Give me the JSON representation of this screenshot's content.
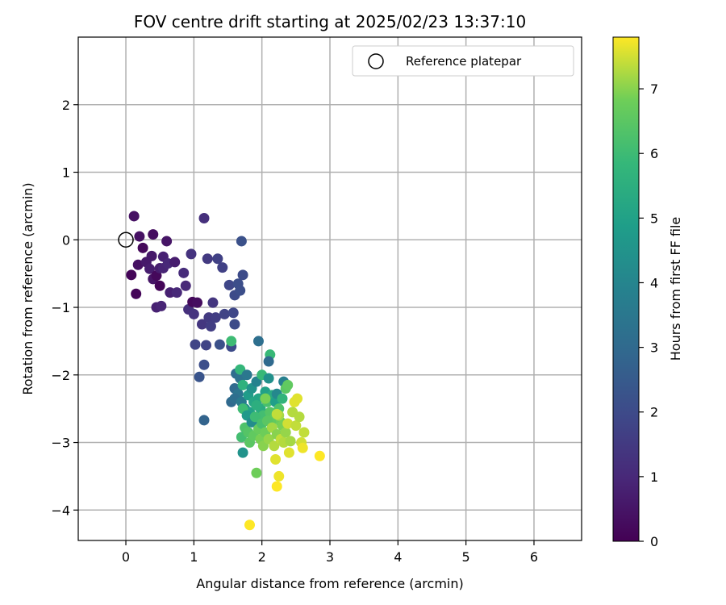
{
  "chart_data": {
    "type": "scatter",
    "title": "FOV centre drift starting at 2025/02/23 13:37:10",
    "xlabel": "Angular distance from reference (arcmin)",
    "ylabel": "Rotation from reference (arcmin)",
    "xlim": [
      -0.7,
      6.7
    ],
    "ylim": [
      -4.45,
      3.0
    ],
    "xticks": [
      0,
      1,
      2,
      3,
      4,
      5,
      6
    ],
    "yticks": [
      2,
      1,
      0,
      -1,
      -2,
      -3,
      -4
    ],
    "xtick_labels": [
      "0",
      "1",
      "2",
      "3",
      "4",
      "5",
      "6"
    ],
    "ytick_labels": [
      "2",
      "1",
      "0",
      "−1",
      "−2",
      "−3",
      "−4"
    ],
    "grid": true,
    "legend": {
      "placement": "top-right",
      "label": "Reference platepar"
    },
    "reference_point": {
      "x": 0,
      "y": 0
    },
    "colorbar": {
      "label": "Hours from first FF file",
      "colormap": "viridis",
      "range": [
        0,
        7.8
      ],
      "ticks": [
        0,
        1,
        2,
        3,
        4,
        5,
        6,
        7
      ],
      "tick_labels": [
        "0",
        "1",
        "2",
        "3",
        "4",
        "5",
        "6",
        "7"
      ]
    },
    "points": [
      [
        0.08,
        -0.52,
        0.1
      ],
      [
        0.12,
        0.35,
        0.4
      ],
      [
        0.15,
        -0.8,
        0.1
      ],
      [
        0.18,
        -0.37,
        0.4
      ],
      [
        0.2,
        0.05,
        0.4
      ],
      [
        0.25,
        -0.12,
        0.2
      ],
      [
        0.3,
        -0.33,
        0.6
      ],
      [
        0.35,
        -0.43,
        0.7
      ],
      [
        0.38,
        -0.24,
        0.6
      ],
      [
        0.4,
        0.08,
        0.3
      ],
      [
        0.4,
        -0.58,
        0.5
      ],
      [
        0.45,
        -0.53,
        0.2
      ],
      [
        0.45,
        -1.0,
        0.8
      ],
      [
        0.5,
        -0.68,
        0.1
      ],
      [
        0.5,
        -0.42,
        0.7
      ],
      [
        0.52,
        -0.98,
        0.9
      ],
      [
        0.55,
        -0.25,
        0.8
      ],
      [
        0.55,
        -0.42,
        0.9
      ],
      [
        0.6,
        -0.02,
        0.5
      ],
      [
        0.62,
        -0.35,
        1.0
      ],
      [
        0.65,
        -0.78,
        0.8
      ],
      [
        0.72,
        -0.33,
        0.7
      ],
      [
        0.75,
        -0.78,
        1.0
      ],
      [
        0.85,
        -0.49,
        1.1
      ],
      [
        0.88,
        -0.68,
        1.0
      ],
      [
        0.92,
        -1.03,
        1.2
      ],
      [
        0.96,
        -0.21,
        1.3
      ],
      [
        0.98,
        -0.92,
        0.2
      ],
      [
        1.0,
        -1.1,
        1.3
      ],
      [
        1.02,
        -1.55,
        1.8
      ],
      [
        1.05,
        -0.93,
        0.3
      ],
      [
        1.08,
        -2.03,
        2.3
      ],
      [
        1.12,
        -1.25,
        1.4
      ],
      [
        1.15,
        -1.85,
        2.1
      ],
      [
        1.15,
        0.32,
        1.2
      ],
      [
        1.18,
        -1.56,
        1.8
      ],
      [
        1.15,
        -2.67,
        2.8
      ],
      [
        1.2,
        -0.28,
        1.5
      ],
      [
        1.22,
        -1.15,
        1.5
      ],
      [
        1.25,
        -1.28,
        1.6
      ],
      [
        1.28,
        -0.93,
        1.4
      ],
      [
        1.32,
        -1.15,
        1.6
      ],
      [
        1.35,
        -0.28,
        1.7
      ],
      [
        1.38,
        -1.55,
        2.2
      ],
      [
        1.42,
        -0.41,
        1.7
      ],
      [
        1.45,
        -1.1,
        1.8
      ],
      [
        1.52,
        -0.67,
        1.9
      ],
      [
        1.55,
        -1.58,
        2.0
      ],
      [
        1.58,
        -1.08,
        1.9
      ],
      [
        1.6,
        -1.25,
        2.0
      ],
      [
        1.6,
        -0.82,
        2.0
      ],
      [
        1.65,
        -0.65,
        2.1
      ],
      [
        1.68,
        -0.75,
        2.1
      ],
      [
        1.7,
        -0.02,
        2.2
      ],
      [
        1.72,
        -0.52,
        2.0
      ],
      [
        1.55,
        -1.5,
        6.0
      ],
      [
        1.6,
        -2.2,
        3.0
      ],
      [
        1.62,
        -1.98,
        3.1
      ],
      [
        1.65,
        -2.28,
        3.4
      ],
      [
        1.68,
        -2.05,
        3.3
      ],
      [
        1.55,
        -2.4,
        3.0
      ],
      [
        1.6,
        -2.35,
        3.2
      ],
      [
        1.68,
        -1.92,
        5.8
      ],
      [
        1.7,
        -2.4,
        3.6
      ],
      [
        1.72,
        -2.15,
        5.6
      ],
      [
        1.75,
        -2.5,
        4.2
      ],
      [
        1.78,
        -2.0,
        3.5
      ],
      [
        1.8,
        -2.3,
        4.8
      ],
      [
        1.82,
        -2.55,
        5.0
      ],
      [
        1.85,
        -2.2,
        4.5
      ],
      [
        1.88,
        -2.4,
        5.2
      ],
      [
        1.9,
        -2.65,
        4.6
      ],
      [
        1.92,
        -2.1,
        3.9
      ],
      [
        1.95,
        -2.35,
        5.1
      ],
      [
        1.98,
        -2.5,
        5.4
      ],
      [
        2.0,
        -2.0,
        5.9
      ],
      [
        2.02,
        -2.6,
        6.1
      ],
      [
        2.05,
        -2.25,
        5.0
      ],
      [
        2.08,
        -2.4,
        6.2
      ],
      [
        2.1,
        -2.05,
        4.4
      ],
      [
        2.12,
        -2.55,
        6.4
      ],
      [
        2.15,
        -2.3,
        5.3
      ],
      [
        2.18,
        -2.65,
        6.6
      ],
      [
        2.2,
        -2.4,
        4.9
      ],
      [
        2.22,
        -2.28,
        4.1
      ],
      [
        2.25,
        -2.5,
        6.3
      ],
      [
        2.28,
        -2.7,
        6.8
      ],
      [
        2.3,
        -2.35,
        5.7
      ],
      [
        2.32,
        -2.1,
        3.8
      ],
      [
        2.35,
        -2.2,
        6.5
      ],
      [
        1.72,
        -2.5,
        6.0
      ],
      [
        1.75,
        -2.78,
        6.3
      ],
      [
        1.7,
        -2.92,
        6.1
      ],
      [
        1.78,
        -2.6,
        4.7
      ],
      [
        1.8,
        -2.85,
        6.4
      ],
      [
        1.82,
        -3.0,
        6.5
      ],
      [
        1.85,
        -2.7,
        4.3
      ],
      [
        1.88,
        -2.9,
        6.6
      ],
      [
        1.9,
        -2.62,
        6.0
      ],
      [
        1.92,
        -2.45,
        5.5
      ],
      [
        1.95,
        -2.8,
        6.7
      ],
      [
        1.98,
        -2.95,
        6.9
      ],
      [
        2.0,
        -2.72,
        6.2
      ],
      [
        2.02,
        -3.05,
        7.0
      ],
      [
        2.05,
        -2.85,
        6.8
      ],
      [
        2.08,
        -2.68,
        6.5
      ],
      [
        2.1,
        -2.95,
        7.1
      ],
      [
        2.12,
        -1.7,
        5.9
      ],
      [
        2.1,
        -1.8,
        3.0
      ],
      [
        1.95,
        -1.5,
        3.2
      ],
      [
        2.15,
        -2.78,
        7.2
      ],
      [
        2.18,
        -3.05,
        7.3
      ],
      [
        2.2,
        -3.25,
        7.6
      ],
      [
        2.22,
        -2.88,
        7.0
      ],
      [
        2.25,
        -2.6,
        7.2
      ],
      [
        2.28,
        -2.95,
        7.4
      ],
      [
        2.3,
        -2.75,
        6.9
      ],
      [
        2.32,
        -3.0,
        7.3
      ],
      [
        2.35,
        -2.85,
        7.1
      ],
      [
        2.38,
        -2.72,
        7.5
      ],
      [
        2.4,
        -3.15,
        7.6
      ],
      [
        2.42,
        -2.98,
        7.2
      ],
      [
        2.45,
        -2.55,
        7.3
      ],
      [
        2.48,
        -2.4,
        7.5
      ],
      [
        2.5,
        -2.75,
        7.4
      ],
      [
        2.52,
        -2.35,
        7.6
      ],
      [
        2.55,
        -2.62,
        7.3
      ],
      [
        2.58,
        -3.0,
        7.5
      ],
      [
        2.6,
        -3.08,
        7.7
      ],
      [
        2.62,
        -2.85,
        7.4
      ],
      [
        2.25,
        -3.5,
        7.7
      ],
      [
        2.22,
        -3.65,
        7.8
      ],
      [
        1.92,
        -3.45,
        6.8
      ],
      [
        1.72,
        -3.15,
        4.5
      ],
      [
        2.85,
        -3.2,
        7.8
      ],
      [
        1.82,
        -4.22,
        7.8
      ],
      [
        2.38,
        -2.15,
        6.6
      ],
      [
        2.22,
        -2.58,
        7.4
      ],
      [
        2.48,
        -2.4,
        7.6
      ],
      [
        2.05,
        -2.35,
        6.9
      ]
    ]
  }
}
